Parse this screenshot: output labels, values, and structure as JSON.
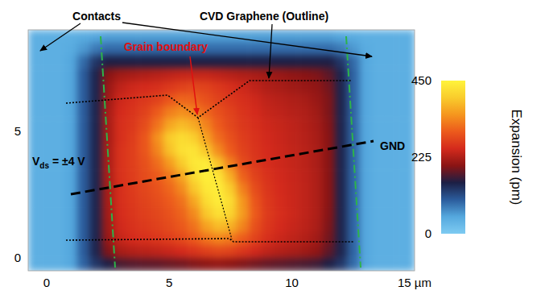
{
  "chart_data": {
    "type": "heatmap",
    "xlim": [
      -0.75,
      15
    ],
    "ylim": [
      -0.5,
      9
    ],
    "xticks": [
      0,
      5,
      10,
      {
        "value": 15,
        "label": "15 µm"
      }
    ],
    "yticks": [
      0,
      5
    ],
    "x": [
      -0.5,
      0,
      0.5,
      1,
      1.5,
      2,
      2.5,
      3,
      3.5,
      4,
      4.5,
      5,
      5.5,
      6,
      6.5,
      7,
      7.5,
      8,
      8.5,
      9,
      9.5,
      10,
      10.5,
      11,
      11.5,
      12,
      12.5,
      13,
      13.5,
      14,
      14.5
    ],
    "y": [
      8.75,
      8.25,
      7.75,
      7.25,
      6.75,
      6.25,
      5.75,
      5.25,
      4.75,
      4.25,
      3.75,
      3.25,
      2.75,
      2.25,
      1.75,
      1.25,
      0.75,
      0.25,
      -0.25
    ],
    "cells": [
      [
        40,
        40,
        40,
        40,
        45,
        50,
        55,
        55,
        55,
        55,
        55,
        55,
        55,
        55,
        55,
        55,
        55,
        55,
        55,
        55,
        55,
        55,
        55,
        55,
        55,
        50,
        45,
        40,
        40,
        40,
        40
      ],
      [
        40,
        40,
        40,
        45,
        60,
        80,
        90,
        90,
        90,
        90,
        90,
        90,
        90,
        90,
        90,
        90,
        90,
        90,
        90,
        90,
        90,
        90,
        90,
        90,
        90,
        80,
        60,
        45,
        40,
        40,
        40
      ],
      [
        40,
        40,
        40,
        50,
        90,
        130,
        150,
        150,
        150,
        150,
        150,
        150,
        150,
        150,
        150,
        150,
        150,
        150,
        150,
        150,
        150,
        150,
        150,
        150,
        150,
        130,
        90,
        50,
        40,
        40,
        40
      ],
      [
        40,
        40,
        40,
        50,
        100,
        145,
        200,
        215,
        220,
        225,
        230,
        235,
        240,
        240,
        240,
        235,
        230,
        225,
        220,
        215,
        210,
        205,
        200,
        195,
        180,
        145,
        95,
        50,
        40,
        40,
        40
      ],
      [
        40,
        40,
        40,
        50,
        100,
        145,
        210,
        235,
        245,
        250,
        255,
        265,
        275,
        280,
        275,
        265,
        255,
        245,
        235,
        225,
        220,
        215,
        210,
        205,
        190,
        145,
        95,
        50,
        40,
        40,
        40
      ],
      [
        40,
        40,
        40,
        50,
        100,
        145,
        215,
        245,
        255,
        265,
        275,
        295,
        310,
        305,
        290,
        275,
        265,
        255,
        245,
        235,
        230,
        225,
        220,
        210,
        195,
        145,
        95,
        50,
        40,
        40,
        40
      ],
      [
        40,
        40,
        40,
        50,
        100,
        145,
        220,
        250,
        260,
        275,
        300,
        330,
        345,
        335,
        310,
        290,
        275,
        260,
        250,
        240,
        235,
        230,
        225,
        215,
        195,
        145,
        95,
        50,
        40,
        40,
        40
      ],
      [
        40,
        40,
        40,
        50,
        100,
        145,
        220,
        255,
        265,
        285,
        320,
        365,
        385,
        370,
        335,
        300,
        280,
        265,
        255,
        245,
        240,
        235,
        228,
        218,
        198,
        145,
        95,
        50,
        40,
        40,
        40
      ],
      [
        40,
        40,
        40,
        50,
        100,
        145,
        220,
        255,
        270,
        295,
        345,
        400,
        420,
        405,
        360,
        315,
        290,
        270,
        258,
        248,
        242,
        236,
        230,
        220,
        200,
        145,
        95,
        50,
        40,
        40,
        40
      ],
      [
        40,
        40,
        40,
        50,
        100,
        145,
        222,
        258,
        272,
        295,
        335,
        390,
        425,
        430,
        395,
        340,
        300,
        275,
        260,
        250,
        244,
        238,
        232,
        222,
        200,
        145,
        95,
        50,
        40,
        40,
        40
      ],
      [
        40,
        40,
        40,
        50,
        100,
        145,
        222,
        258,
        272,
        290,
        315,
        355,
        400,
        435,
        440,
        390,
        330,
        285,
        265,
        252,
        245,
        240,
        233,
        222,
        200,
        145,
        95,
        50,
        40,
        40,
        40
      ],
      [
        40,
        40,
        40,
        50,
        100,
        145,
        222,
        258,
        270,
        285,
        300,
        325,
        365,
        420,
        445,
        430,
        370,
        305,
        275,
        258,
        248,
        242,
        235,
        224,
        200,
        145,
        95,
        50,
        40,
        40,
        40
      ],
      [
        40,
        40,
        40,
        50,
        100,
        145,
        220,
        255,
        268,
        280,
        292,
        310,
        340,
        395,
        435,
        440,
        400,
        330,
        285,
        262,
        250,
        243,
        236,
        224,
        200,
        145,
        95,
        50,
        40,
        40,
        40
      ],
      [
        40,
        40,
        40,
        50,
        100,
        145,
        220,
        255,
        266,
        276,
        286,
        300,
        320,
        365,
        420,
        440,
        420,
        350,
        295,
        266,
        252,
        244,
        236,
        224,
        200,
        145,
        95,
        50,
        40,
        40,
        40
      ],
      [
        40,
        40,
        40,
        50,
        100,
        145,
        218,
        252,
        262,
        272,
        280,
        292,
        308,
        340,
        395,
        425,
        410,
        355,
        300,
        268,
        254,
        245,
        236,
        224,
        198,
        145,
        95,
        50,
        40,
        40,
        40
      ],
      [
        40,
        40,
        40,
        50,
        100,
        145,
        215,
        248,
        258,
        266,
        274,
        284,
        298,
        320,
        360,
        385,
        375,
        335,
        290,
        264,
        250,
        242,
        234,
        222,
        195,
        145,
        95,
        50,
        40,
        40,
        40
      ],
      [
        40,
        40,
        40,
        50,
        100,
        145,
        210,
        240,
        250,
        256,
        262,
        270,
        282,
        298,
        320,
        335,
        325,
        300,
        275,
        255,
        243,
        236,
        228,
        216,
        190,
        145,
        95,
        50,
        40,
        40,
        40
      ],
      [
        40,
        40,
        40,
        50,
        100,
        145,
        195,
        220,
        228,
        232,
        236,
        242,
        250,
        260,
        272,
        280,
        275,
        262,
        248,
        236,
        228,
        222,
        215,
        205,
        180,
        145,
        95,
        50,
        40,
        40,
        40
      ],
      [
        40,
        40,
        40,
        50,
        95,
        130,
        150,
        170,
        175,
        178,
        180,
        184,
        188,
        195,
        200,
        205,
        200,
        195,
        188,
        182,
        178,
        174,
        170,
        165,
        150,
        130,
        90,
        50,
        40,
        40,
        40
      ]
    ],
    "colorbar": {
      "label": "Expansion (pm)",
      "range": [
        0,
        450
      ],
      "ticks": [
        0,
        225,
        450
      ],
      "colors": [
        "#7ecbf2",
        "#55a8de",
        "#2b5c9c",
        "#1c1f45",
        "#8a1414",
        "#d42a1c",
        "#ec5a1c",
        "#f5961e",
        "#f9cc2c",
        "#fff43c"
      ]
    },
    "annotations": {
      "contacts": "Contacts",
      "graphene": "CVD Graphene (Outline)",
      "grain_boundary": "Grain boundary",
      "vds": [
        "V",
        "ds",
        " = ±4 V"
      ],
      "gnd": "GND"
    }
  }
}
